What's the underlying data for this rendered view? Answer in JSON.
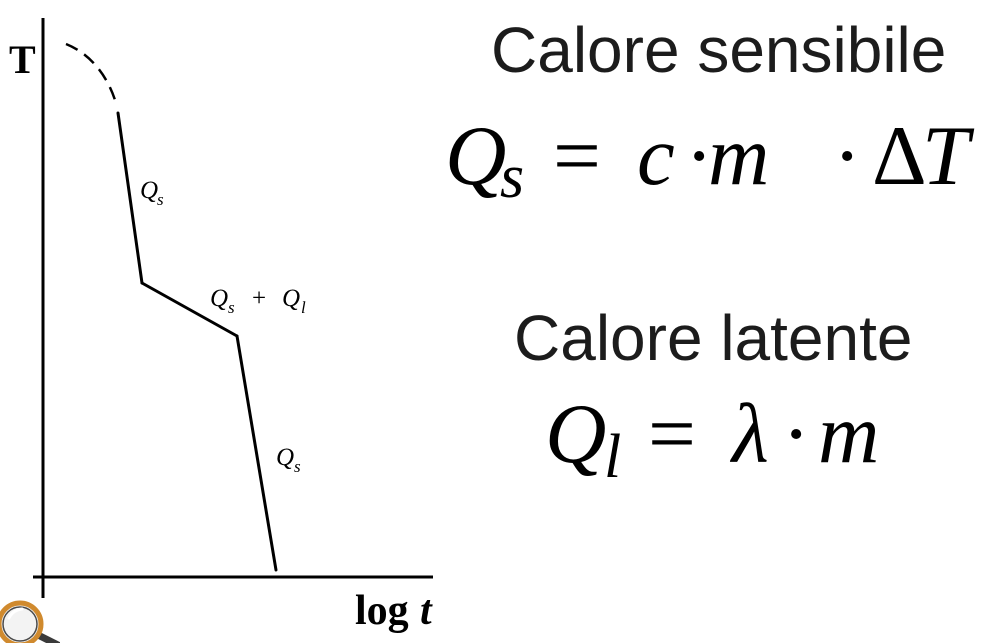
{
  "diagram": {
    "y_axis_label": "T",
    "x_axis_label": {
      "prefix": "log",
      "variable": "t"
    },
    "segment_labels": [
      {
        "symbol": "Q",
        "subscript": "s"
      },
      {
        "left": {
          "symbol": "Q",
          "subscript": "s"
        },
        "operator": "+",
        "right": {
          "symbol": "Q",
          "subscript": "l"
        }
      },
      {
        "symbol": "Q",
        "subscript": "s"
      }
    ]
  },
  "sensible_heat": {
    "title": "Calore sensibile",
    "formula": {
      "symbol": "Q",
      "subscript": "s",
      "equals": "=",
      "rhs": [
        "c",
        "·",
        "m",
        "·",
        "Δ",
        "T"
      ]
    }
  },
  "latent_heat": {
    "title": "Calore latente",
    "formula": {
      "symbol": "Q",
      "subscript": "l",
      "equals": "=",
      "rhs": [
        "λ",
        "·",
        "m"
      ]
    }
  },
  "icons": {
    "magnifier": "magnifier-icon"
  },
  "colors": {
    "ink": "#000000",
    "heading_text": "#1c1c1c",
    "magnifier_rim": "#d08a2e"
  }
}
